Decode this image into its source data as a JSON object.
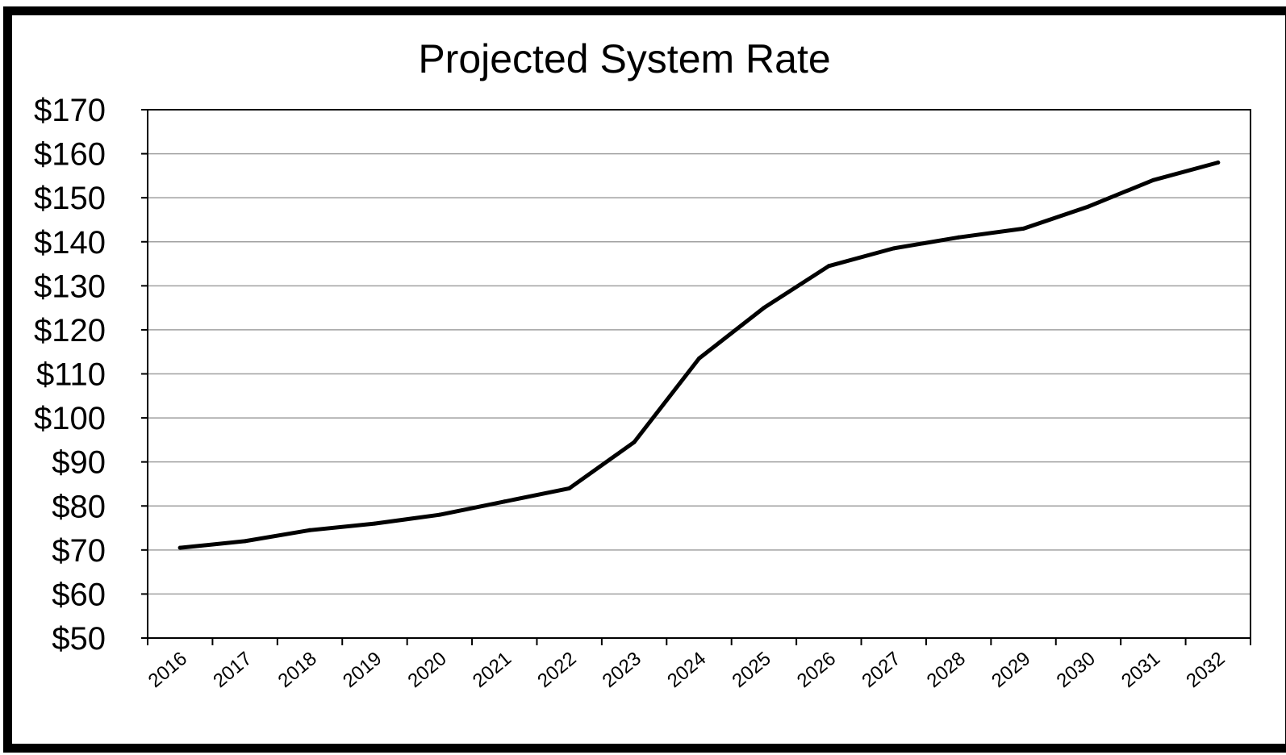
{
  "chart_data": {
    "type": "line",
    "title": "Projected System Rate",
    "xlabel": "",
    "ylabel": "",
    "categories": [
      "2016",
      "2017",
      "2018",
      "2019",
      "2020",
      "2021",
      "2022",
      "2023",
      "2024",
      "2025",
      "2026",
      "2027",
      "2028",
      "2029",
      "2030",
      "2031",
      "2032"
    ],
    "series": [
      {
        "values": [
          70.5,
          72,
          74.5,
          76,
          78,
          81,
          84,
          94.5,
          113.5,
          125,
          134.5,
          138.5,
          141,
          143,
          148,
          154,
          158
        ]
      }
    ],
    "ylim": [
      50,
      170
    ],
    "ytick_step": 10,
    "ytick_labels": [
      "$50",
      "$60",
      "$70",
      "$80",
      "$90",
      "$100",
      "$110",
      "$120",
      "$130",
      "$140",
      "$150",
      "$160",
      "$170"
    ],
    "grid": true,
    "legend": "none",
    "line_color": "#000000",
    "grid_color": "#a0a0a0"
  }
}
